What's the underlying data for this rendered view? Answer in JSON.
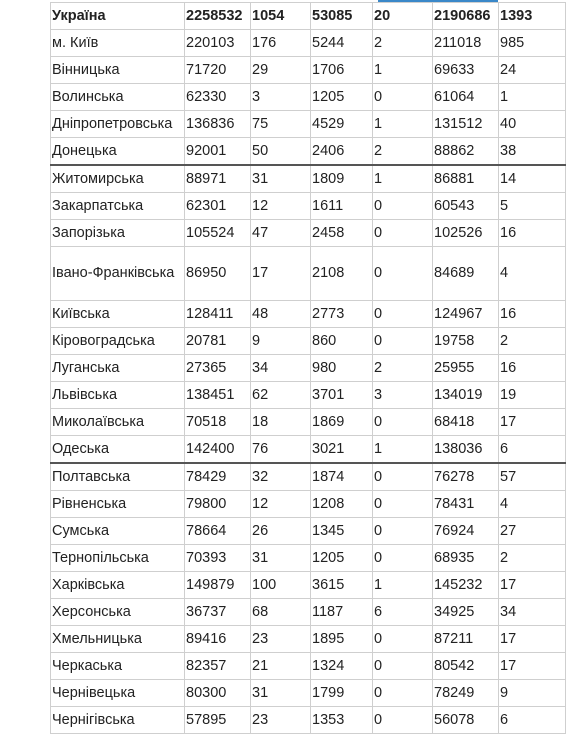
{
  "table": {
    "rows": [
      {
        "region": "Україна",
        "c1": "2258532",
        "c2": "1054",
        "c3": "53085",
        "c4": "20",
        "c5": "2190686",
        "c6": "1393"
      },
      {
        "region": "м. Київ",
        "c1": "220103",
        "c2": "176",
        "c3": "5244",
        "c4": "2",
        "c5": "211018",
        "c6": "985"
      },
      {
        "region": "Вінницька",
        "c1": "71720",
        "c2": "29",
        "c3": "1706",
        "c4": "1",
        "c5": "69633",
        "c6": "24"
      },
      {
        "region": "Волинська",
        "c1": "62330",
        "c2": "3",
        "c3": "1205",
        "c4": "0",
        "c5": "61064",
        "c6": "1"
      },
      {
        "region": "Дніпропетровська",
        "c1": "136836",
        "c2": "75",
        "c3": "4529",
        "c4": "1",
        "c5": "131512",
        "c6": "40"
      },
      {
        "region": "Донецька",
        "c1": "92001",
        "c2": "50",
        "c3": "2406",
        "c4": "2",
        "c5": "88862",
        "c6": "38"
      },
      {
        "region": "Житомирська",
        "c1": "88971",
        "c2": "31",
        "c3": "1809",
        "c4": "1",
        "c5": "86881",
        "c6": "14"
      },
      {
        "region": "Закарпатська",
        "c1": "62301",
        "c2": "12",
        "c3": "1611",
        "c4": "0",
        "c5": "60543",
        "c6": "5"
      },
      {
        "region": "Запорізька",
        "c1": "105524",
        "c2": "47",
        "c3": "2458",
        "c4": "0",
        "c5": "102526",
        "c6": "16"
      },
      {
        "region": "Івано-Франківська",
        "c1": "86950",
        "c2": "17",
        "c3": "2108",
        "c4": "0",
        "c5": "84689",
        "c6": "4"
      },
      {
        "region": "Київська",
        "c1": "128411",
        "c2": "48",
        "c3": "2773",
        "c4": "0",
        "c5": "124967",
        "c6": "16"
      },
      {
        "region": "Кіровоградська",
        "c1": "20781",
        "c2": "9",
        "c3": "860",
        "c4": "0",
        "c5": "19758",
        "c6": "2"
      },
      {
        "region": "Луганська",
        "c1": "27365",
        "c2": "34",
        "c3": "980",
        "c4": "2",
        "c5": "25955",
        "c6": "16"
      },
      {
        "region": "Львівська",
        "c1": "138451",
        "c2": "62",
        "c3": "3701",
        "c4": "3",
        "c5": "134019",
        "c6": "19"
      },
      {
        "region": "Миколаївська",
        "c1": "70518",
        "c2": "18",
        "c3": "1869",
        "c4": "0",
        "c5": "68418",
        "c6": "17"
      },
      {
        "region": "Одеська",
        "c1": "142400",
        "c2": "76",
        "c3": "3021",
        "c4": "1",
        "c5": "138036",
        "c6": "6"
      },
      {
        "region": "Полтавська",
        "c1": "78429",
        "c2": "32",
        "c3": "1874",
        "c4": "0",
        "c5": "76278",
        "c6": "57"
      },
      {
        "region": "Рівненська",
        "c1": "79800",
        "c2": "12",
        "c3": "1208",
        "c4": "0",
        "c5": "78431",
        "c6": "4"
      },
      {
        "region": "Сумська",
        "c1": "78664",
        "c2": "26",
        "c3": "1345",
        "c4": "0",
        "c5": "76924",
        "c6": "27"
      },
      {
        "region": "Тернопільська",
        "c1": "70393",
        "c2": "31",
        "c3": "1205",
        "c4": "0",
        "c5": "68935",
        "c6": "2"
      },
      {
        "region": "Харківська",
        "c1": "149879",
        "c2": "100",
        "c3": "3615",
        "c4": "1",
        "c5": "145232",
        "c6": "17"
      },
      {
        "region": "Херсонська",
        "c1": "36737",
        "c2": "68",
        "c3": "1187",
        "c4": "6",
        "c5": "34925",
        "c6": "34"
      },
      {
        "region": "Хмельницька",
        "c1": "89416",
        "c2": "23",
        "c3": "1895",
        "c4": "0",
        "c5": "87211",
        "c6": "17"
      },
      {
        "region": "Черкаська",
        "c1": "82357",
        "c2": "21",
        "c3": "1324",
        "c4": "0",
        "c5": "80542",
        "c6": "17"
      },
      {
        "region": "Чернівецька",
        "c1": "80300",
        "c2": "31",
        "c3": "1799",
        "c4": "0",
        "c5": "78249",
        "c6": "9"
      },
      {
        "region": "Чернігівська",
        "c1": "57895",
        "c2": "23",
        "c3": "1353",
        "c4": "0",
        "c5": "56078",
        "c6": "6"
      }
    ]
  },
  "colors": {
    "border": "#cfcfcf",
    "separator": "#555555",
    "link_strip": "#3a88c9",
    "text": "#222222"
  }
}
